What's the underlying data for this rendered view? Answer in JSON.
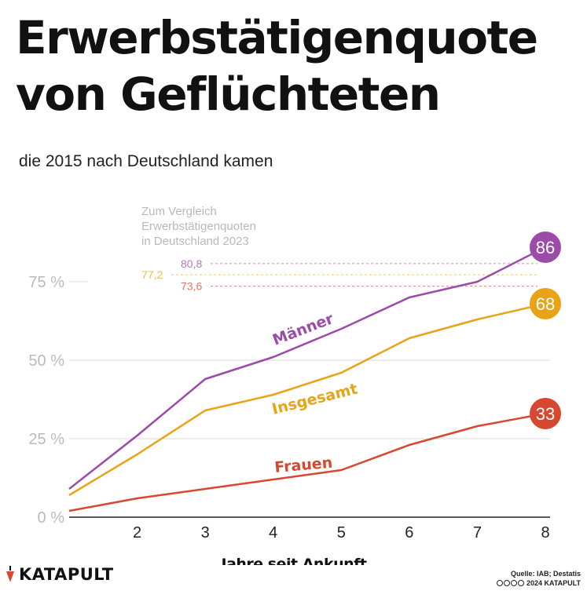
{
  "title_lines": [
    "Erwerbstätigenquote",
    "von Geflüchteten"
  ],
  "subtitle": "die 2015 nach Deutschland kamen",
  "colors": {
    "maenner": "#9b4ba8",
    "insgesamt": "#e8a317",
    "frauen": "#d8472f",
    "grid": "#e6e6e6",
    "axis_tick": "#bbbbbb",
    "ref_note": "#b9b9b9"
  },
  "chart_data": {
    "type": "line",
    "xlabel": "Jahre seit Ankunft",
    "ylabel": "",
    "xlim": [
      1,
      8
    ],
    "ylim": [
      0,
      86
    ],
    "x_ticks": [
      2,
      3,
      4,
      5,
      6,
      7,
      8
    ],
    "y_ticks": [
      {
        "value": 0,
        "label": "0 %"
      },
      {
        "value": 25,
        "label": "25 %"
      },
      {
        "value": 50,
        "label": "50 %"
      },
      {
        "value": 75,
        "label": "75 %"
      }
    ],
    "x": [
      1,
      2,
      3,
      4,
      5,
      6,
      7,
      8
    ],
    "series": [
      {
        "name": "Männer",
        "key": "maenner",
        "values": [
          9,
          26,
          44,
          51,
          60,
          70,
          75,
          86
        ],
        "end_label": "86"
      },
      {
        "name": "Insgesamt",
        "key": "insgesamt",
        "values": [
          7,
          20,
          34,
          39,
          46,
          57,
          63,
          68
        ],
        "end_label": "68"
      },
      {
        "name": "Frauen",
        "key": "frauen",
        "values": [
          2,
          6,
          9,
          12,
          15,
          23,
          29,
          33
        ],
        "end_label": "33"
      }
    ],
    "reference": {
      "note_lines": [
        "Zum Vergleich",
        "Erwerbstätigenquoten",
        "in Deutschland 2023"
      ],
      "lines": [
        {
          "key": "maenner",
          "value": 80.8,
          "label": "80,8"
        },
        {
          "key": "insgesamt",
          "value": 77.2,
          "label": "77,2"
        },
        {
          "key": "frauen",
          "value": 73.6,
          "label": "73,6"
        }
      ]
    },
    "grid": true
  },
  "brand": "KATAPULT",
  "source_line1": "Quelle: IAB; Destatis",
  "source_line2": "2024 KATAPULT"
}
